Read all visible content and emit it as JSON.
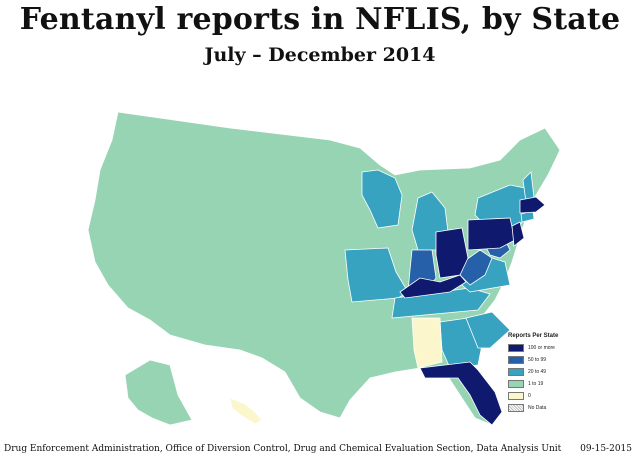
{
  "title": "Fentanyl reports in NFLIS, by State",
  "subtitle": "July – December 2014",
  "legend": {
    "title": "Reports Per State",
    "items": [
      {
        "label": "100 or more",
        "color": "#0f1a6e"
      },
      {
        "label": "50 to 99",
        "color": "#2660a8"
      },
      {
        "label": "20 to 49",
        "color": "#38a3c0"
      },
      {
        "label": "1 to 19",
        "color": "#96d4b3"
      },
      {
        "label": "0",
        "color": "#fbf6cc"
      },
      {
        "label": "No Data",
        "color": "#ffffff"
      }
    ]
  },
  "colors": {
    "c100": "#0f1a6e",
    "c50": "#2660a8",
    "c20": "#38a3c0",
    "c1": "#96d4b3",
    "c0": "#fbf6cc",
    "border": "#ffffff"
  },
  "state_categories": {
    "OH": "100 or more",
    "PA": "100 or more",
    "KY": "100 or more",
    "FL": "100 or more",
    "MA": "100 or more",
    "NJ": "100 or more",
    "IN": "50 to 99",
    "WV": "50 to 99",
    "MD": "50 to 99",
    "RI": "50 to 99",
    "MI": "20 to 49",
    "WI": "20 to 49",
    "MO": "20 to 49",
    "NY": "20 to 49",
    "TN": "20 to 49",
    "GA": "20 to 49",
    "SC": "20 to 49",
    "VA": "20 to 49",
    "CT": "20 to 49",
    "NH": "20 to 49",
    "DE": "20 to 49",
    "AL": "0"
  },
  "footer": {
    "source": "Drug Enforcement Administration, Office of Diversion Control, Drug and Chemical Evaluation Section, Data Analysis Unit",
    "date": "09-15-2015"
  }
}
